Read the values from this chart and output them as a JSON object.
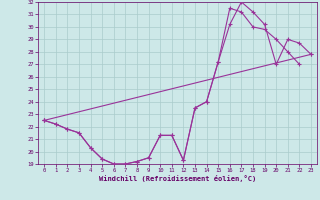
{
  "xlabel": "Windchill (Refroidissement éolien,°C)",
  "bg_color": "#cde8e8",
  "grid_color": "#aacccc",
  "line_color": "#993399",
  "xlim": [
    -0.5,
    23.5
  ],
  "ylim": [
    19,
    32
  ],
  "xticks": [
    0,
    1,
    2,
    3,
    4,
    5,
    6,
    7,
    8,
    9,
    10,
    11,
    12,
    13,
    14,
    15,
    16,
    17,
    18,
    19,
    20,
    21,
    22,
    23
  ],
  "yticks": [
    19,
    20,
    21,
    22,
    23,
    24,
    25,
    26,
    27,
    28,
    29,
    30,
    31,
    32
  ],
  "line1_x": [
    0,
    1,
    2,
    3,
    4,
    5,
    6,
    7,
    8,
    9,
    10,
    11,
    12,
    13,
    14,
    15,
    16,
    17,
    18,
    19,
    20,
    21,
    22,
    23
  ],
  "line1_y": [
    22.5,
    22.2,
    21.8,
    21.5,
    20.3,
    19.4,
    19.0,
    19.0,
    19.2,
    19.5,
    21.3,
    21.3,
    19.3,
    23.5,
    24.0,
    27.2,
    30.2,
    32.0,
    31.2,
    30.2,
    27.0,
    29.0,
    28.7,
    27.8
  ],
  "line2_x": [
    0,
    1,
    2,
    3,
    4,
    5,
    6,
    7,
    8,
    9,
    10,
    11,
    12,
    13,
    14,
    15,
    16,
    17,
    18,
    19,
    20,
    21,
    22
  ],
  "line2_y": [
    22.5,
    22.2,
    21.8,
    21.5,
    20.3,
    19.4,
    19.0,
    19.0,
    19.2,
    19.5,
    21.3,
    21.3,
    19.3,
    23.5,
    24.0,
    27.2,
    31.5,
    31.2,
    30.0,
    29.8,
    29.0,
    28.0,
    27.0
  ],
  "line3_x": [
    0,
    23
  ],
  "line3_y": [
    22.5,
    27.8
  ],
  "marker_size": 2.5,
  "markeredgewidth": 0.8,
  "linewidth": 0.8,
  "tick_fontsize": 4.0,
  "xlabel_fontsize": 5.0
}
